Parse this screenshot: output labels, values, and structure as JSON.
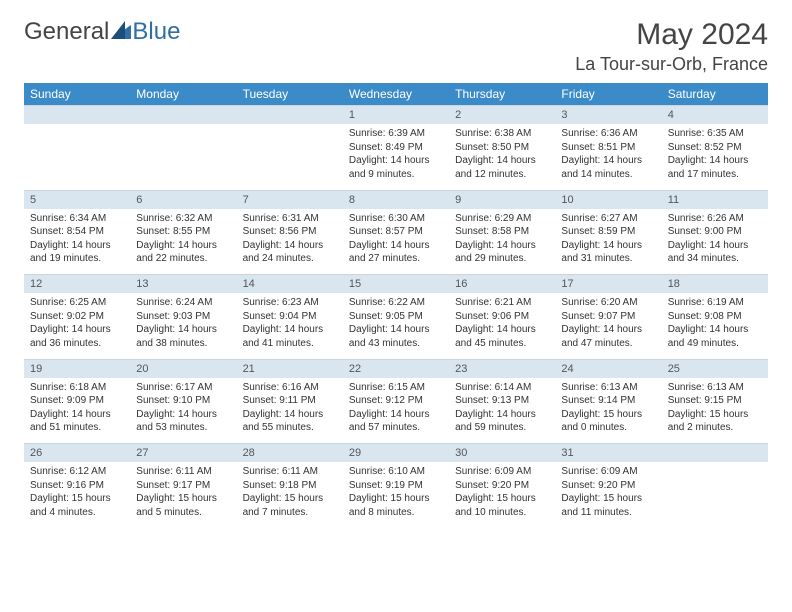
{
  "logo": {
    "text1": "General",
    "text2": "Blue"
  },
  "title": "May 2024",
  "location": "La Tour-sur-Orb, France",
  "weekdays": [
    "Sunday",
    "Monday",
    "Tuesday",
    "Wednesday",
    "Thursday",
    "Friday",
    "Saturday"
  ],
  "colors": {
    "header_bg": "#3b8bc9",
    "header_text": "#ffffff",
    "daynum_bg": "#d9e6f0",
    "daynum_text": "#555555",
    "body_text": "#333333",
    "title_text": "#444444",
    "logo_gray": "#6b6b6b",
    "logo_blue": "#2f6fa3"
  },
  "typography": {
    "title_fontsize": 30,
    "location_fontsize": 18,
    "weekday_fontsize": 12,
    "daynum_fontsize": 11,
    "cell_fontsize": 10
  },
  "weeks": [
    {
      "nums": [
        "",
        "",
        "",
        "1",
        "2",
        "3",
        "4"
      ],
      "cells": [
        {},
        {},
        {},
        {
          "sunrise": "Sunrise: 6:39 AM",
          "sunset": "Sunset: 8:49 PM",
          "daylight1": "Daylight: 14 hours",
          "daylight2": "and 9 minutes."
        },
        {
          "sunrise": "Sunrise: 6:38 AM",
          "sunset": "Sunset: 8:50 PM",
          "daylight1": "Daylight: 14 hours",
          "daylight2": "and 12 minutes."
        },
        {
          "sunrise": "Sunrise: 6:36 AM",
          "sunset": "Sunset: 8:51 PM",
          "daylight1": "Daylight: 14 hours",
          "daylight2": "and 14 minutes."
        },
        {
          "sunrise": "Sunrise: 6:35 AM",
          "sunset": "Sunset: 8:52 PM",
          "daylight1": "Daylight: 14 hours",
          "daylight2": "and 17 minutes."
        }
      ]
    },
    {
      "nums": [
        "5",
        "6",
        "7",
        "8",
        "9",
        "10",
        "11"
      ],
      "cells": [
        {
          "sunrise": "Sunrise: 6:34 AM",
          "sunset": "Sunset: 8:54 PM",
          "daylight1": "Daylight: 14 hours",
          "daylight2": "and 19 minutes."
        },
        {
          "sunrise": "Sunrise: 6:32 AM",
          "sunset": "Sunset: 8:55 PM",
          "daylight1": "Daylight: 14 hours",
          "daylight2": "and 22 minutes."
        },
        {
          "sunrise": "Sunrise: 6:31 AM",
          "sunset": "Sunset: 8:56 PM",
          "daylight1": "Daylight: 14 hours",
          "daylight2": "and 24 minutes."
        },
        {
          "sunrise": "Sunrise: 6:30 AM",
          "sunset": "Sunset: 8:57 PM",
          "daylight1": "Daylight: 14 hours",
          "daylight2": "and 27 minutes."
        },
        {
          "sunrise": "Sunrise: 6:29 AM",
          "sunset": "Sunset: 8:58 PM",
          "daylight1": "Daylight: 14 hours",
          "daylight2": "and 29 minutes."
        },
        {
          "sunrise": "Sunrise: 6:27 AM",
          "sunset": "Sunset: 8:59 PM",
          "daylight1": "Daylight: 14 hours",
          "daylight2": "and 31 minutes."
        },
        {
          "sunrise": "Sunrise: 6:26 AM",
          "sunset": "Sunset: 9:00 PM",
          "daylight1": "Daylight: 14 hours",
          "daylight2": "and 34 minutes."
        }
      ]
    },
    {
      "nums": [
        "12",
        "13",
        "14",
        "15",
        "16",
        "17",
        "18"
      ],
      "cells": [
        {
          "sunrise": "Sunrise: 6:25 AM",
          "sunset": "Sunset: 9:02 PM",
          "daylight1": "Daylight: 14 hours",
          "daylight2": "and 36 minutes."
        },
        {
          "sunrise": "Sunrise: 6:24 AM",
          "sunset": "Sunset: 9:03 PM",
          "daylight1": "Daylight: 14 hours",
          "daylight2": "and 38 minutes."
        },
        {
          "sunrise": "Sunrise: 6:23 AM",
          "sunset": "Sunset: 9:04 PM",
          "daylight1": "Daylight: 14 hours",
          "daylight2": "and 41 minutes."
        },
        {
          "sunrise": "Sunrise: 6:22 AM",
          "sunset": "Sunset: 9:05 PM",
          "daylight1": "Daylight: 14 hours",
          "daylight2": "and 43 minutes."
        },
        {
          "sunrise": "Sunrise: 6:21 AM",
          "sunset": "Sunset: 9:06 PM",
          "daylight1": "Daylight: 14 hours",
          "daylight2": "and 45 minutes."
        },
        {
          "sunrise": "Sunrise: 6:20 AM",
          "sunset": "Sunset: 9:07 PM",
          "daylight1": "Daylight: 14 hours",
          "daylight2": "and 47 minutes."
        },
        {
          "sunrise": "Sunrise: 6:19 AM",
          "sunset": "Sunset: 9:08 PM",
          "daylight1": "Daylight: 14 hours",
          "daylight2": "and 49 minutes."
        }
      ]
    },
    {
      "nums": [
        "19",
        "20",
        "21",
        "22",
        "23",
        "24",
        "25"
      ],
      "cells": [
        {
          "sunrise": "Sunrise: 6:18 AM",
          "sunset": "Sunset: 9:09 PM",
          "daylight1": "Daylight: 14 hours",
          "daylight2": "and 51 minutes."
        },
        {
          "sunrise": "Sunrise: 6:17 AM",
          "sunset": "Sunset: 9:10 PM",
          "daylight1": "Daylight: 14 hours",
          "daylight2": "and 53 minutes."
        },
        {
          "sunrise": "Sunrise: 6:16 AM",
          "sunset": "Sunset: 9:11 PM",
          "daylight1": "Daylight: 14 hours",
          "daylight2": "and 55 minutes."
        },
        {
          "sunrise": "Sunrise: 6:15 AM",
          "sunset": "Sunset: 9:12 PM",
          "daylight1": "Daylight: 14 hours",
          "daylight2": "and 57 minutes."
        },
        {
          "sunrise": "Sunrise: 6:14 AM",
          "sunset": "Sunset: 9:13 PM",
          "daylight1": "Daylight: 14 hours",
          "daylight2": "and 59 minutes."
        },
        {
          "sunrise": "Sunrise: 6:13 AM",
          "sunset": "Sunset: 9:14 PM",
          "daylight1": "Daylight: 15 hours",
          "daylight2": "and 0 minutes."
        },
        {
          "sunrise": "Sunrise: 6:13 AM",
          "sunset": "Sunset: 9:15 PM",
          "daylight1": "Daylight: 15 hours",
          "daylight2": "and 2 minutes."
        }
      ]
    },
    {
      "nums": [
        "26",
        "27",
        "28",
        "29",
        "30",
        "31",
        ""
      ],
      "cells": [
        {
          "sunrise": "Sunrise: 6:12 AM",
          "sunset": "Sunset: 9:16 PM",
          "daylight1": "Daylight: 15 hours",
          "daylight2": "and 4 minutes."
        },
        {
          "sunrise": "Sunrise: 6:11 AM",
          "sunset": "Sunset: 9:17 PM",
          "daylight1": "Daylight: 15 hours",
          "daylight2": "and 5 minutes."
        },
        {
          "sunrise": "Sunrise: 6:11 AM",
          "sunset": "Sunset: 9:18 PM",
          "daylight1": "Daylight: 15 hours",
          "daylight2": "and 7 minutes."
        },
        {
          "sunrise": "Sunrise: 6:10 AM",
          "sunset": "Sunset: 9:19 PM",
          "daylight1": "Daylight: 15 hours",
          "daylight2": "and 8 minutes."
        },
        {
          "sunrise": "Sunrise: 6:09 AM",
          "sunset": "Sunset: 9:20 PM",
          "daylight1": "Daylight: 15 hours",
          "daylight2": "and 10 minutes."
        },
        {
          "sunrise": "Sunrise: 6:09 AM",
          "sunset": "Sunset: 9:20 PM",
          "daylight1": "Daylight: 15 hours",
          "daylight2": "and 11 minutes."
        },
        {}
      ]
    }
  ]
}
